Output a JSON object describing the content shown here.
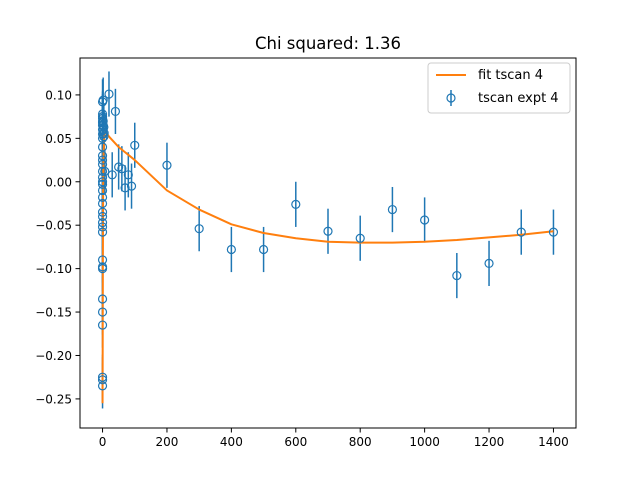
{
  "chart_data": {
    "type": "scatter",
    "title": "Chi squared: 1.36",
    "xlabel": "",
    "ylabel": "",
    "xlim": [
      -70,
      1470
    ],
    "ylim": [
      -0.2835,
      0.1425
    ],
    "xticks": [
      0,
      200,
      400,
      600,
      800,
      1000,
      1200,
      1400
    ],
    "xtick_labels": [
      "0",
      "200",
      "400",
      "600",
      "800",
      "1000",
      "1200",
      "1400"
    ],
    "yticks": [
      -0.25,
      -0.2,
      -0.15,
      -0.1,
      -0.05,
      0.0,
      0.05,
      0.1
    ],
    "ytick_labels": [
      "−0.25",
      "−0.20",
      "−0.15",
      "−0.10",
      "−0.05",
      "0.00",
      "0.05",
      "0.10"
    ],
    "grid": false,
    "legend_position": "top-right",
    "colors": {
      "expt": "#1f77b4",
      "fit": "#ff7f0e"
    },
    "series": [
      {
        "name": "fit tscan 4",
        "kind": "line",
        "x": [
          0,
          1,
          2,
          3,
          5,
          7,
          10,
          15,
          20,
          30,
          40,
          50,
          60,
          70,
          80,
          90,
          100,
          200,
          300,
          400,
          500,
          600,
          700,
          800,
          900,
          1000,
          1100,
          1200,
          1300,
          1400
        ],
        "y": [
          -0.255,
          -0.09,
          0.0,
          0.03,
          0.05,
          0.056,
          0.057,
          0.055,
          0.052,
          0.048,
          0.044,
          0.04,
          0.037,
          0.034,
          0.031,
          0.028,
          0.025,
          -0.01,
          -0.032,
          -0.049,
          -0.059,
          -0.065,
          -0.069,
          -0.07,
          -0.07,
          -0.069,
          -0.067,
          -0.064,
          -0.061,
          -0.057
        ]
      },
      {
        "name": "tscan expt 4",
        "kind": "errorbar",
        "x": [
          0,
          0,
          0,
          0,
          0,
          0,
          0,
          0,
          0,
          0,
          0,
          0,
          0,
          0,
          0,
          0,
          0,
          0,
          0,
          0,
          0,
          0,
          0,
          0,
          0,
          0,
          0,
          0,
          0,
          0,
          0,
          0,
          0,
          0,
          0,
          2,
          2,
          2,
          2,
          2,
          4,
          4,
          5,
          7,
          20,
          30,
          40,
          50,
          60,
          70,
          80,
          90,
          100,
          200,
          300,
          400,
          500,
          600,
          700,
          800,
          900,
          1000,
          1100,
          1200,
          1300,
          1400
        ],
        "y": [
          -0.235,
          -0.228,
          -0.225,
          -0.165,
          -0.15,
          -0.135,
          -0.1,
          -0.098,
          -0.09,
          -0.058,
          -0.052,
          -0.047,
          -0.04,
          -0.035,
          -0.025,
          -0.018,
          -0.01,
          -0.003,
          0.0,
          0.005,
          0.012,
          0.02,
          0.025,
          0.03,
          0.04,
          0.05,
          0.055,
          0.06,
          0.065,
          0.068,
          0.07,
          0.073,
          0.075,
          0.078,
          0.092,
          0.055,
          0.06,
          0.065,
          0.07,
          0.094,
          0.052,
          0.063,
          0.056,
          0.012,
          0.101,
          0.008,
          0.081,
          0.017,
          0.015,
          -0.007,
          0.008,
          -0.005,
          0.042,
          0.019,
          -0.054,
          -0.078,
          -0.078,
          -0.026,
          -0.057,
          -0.065,
          -0.032,
          -0.044,
          -0.108,
          -0.094,
          -0.058,
          -0.058
        ],
        "yerr": 0.026
      }
    ]
  }
}
